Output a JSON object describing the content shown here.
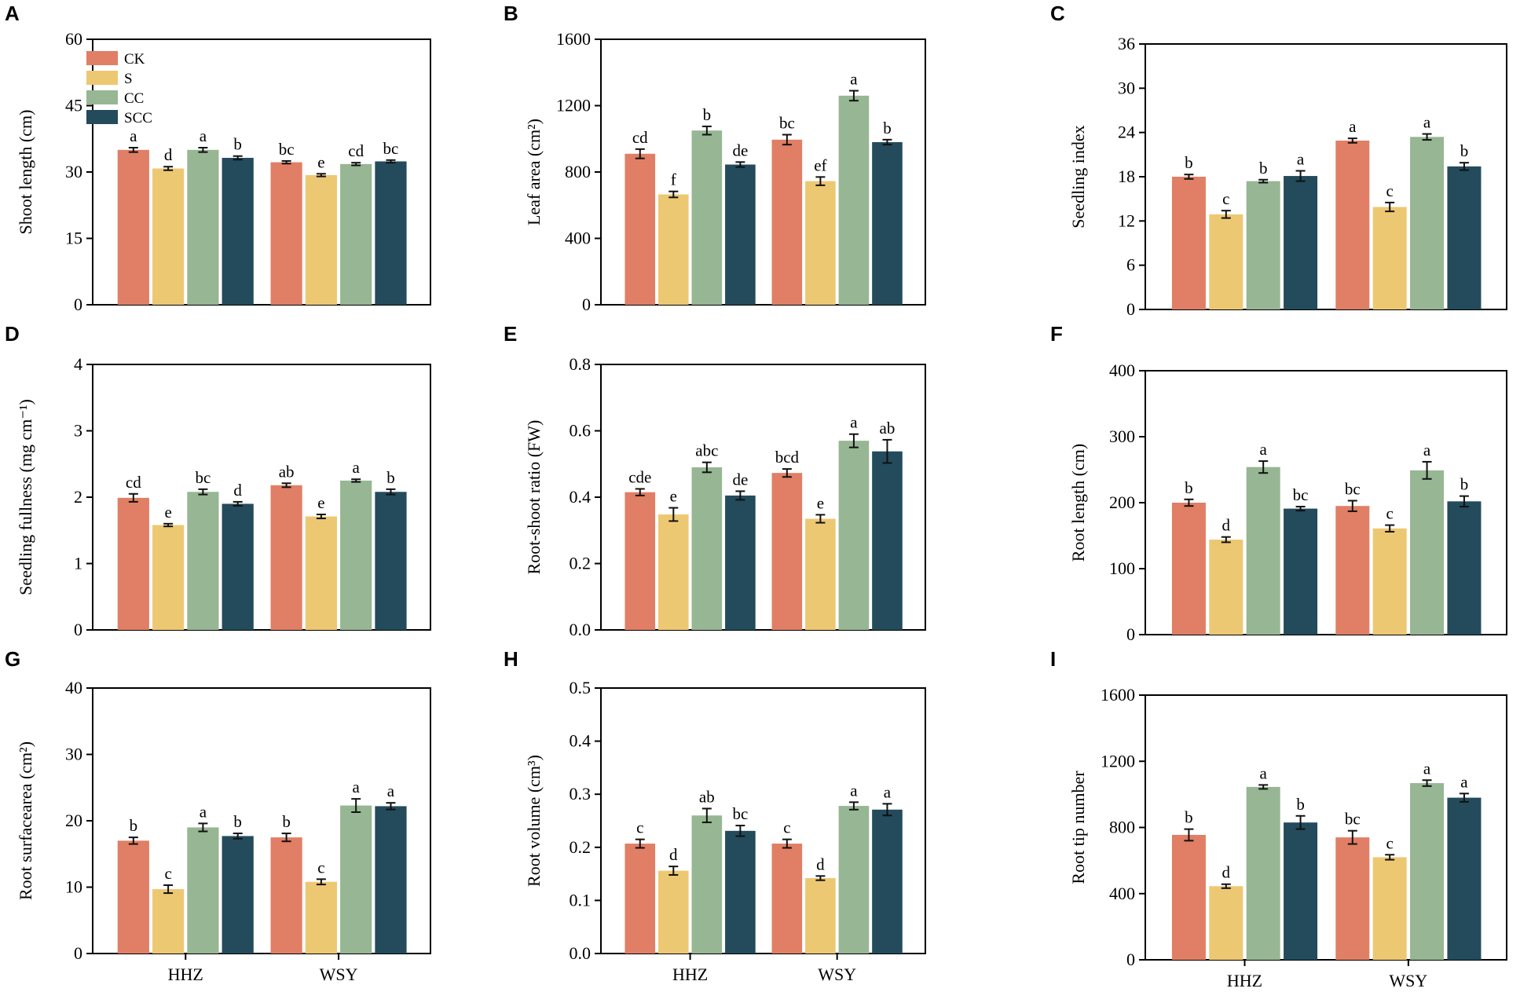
{
  "colors": {
    "CK": "#E07F65",
    "S": "#EDC873",
    "CC": "#97B694",
    "SCC": "#234B5C"
  },
  "legend": {
    "items": [
      "CK",
      "S",
      "CC",
      "SCC"
    ]
  },
  "chart_data": [
    {
      "type": "bar",
      "panel": "A",
      "ylabel": "Shoot length (cm)",
      "ylim": [
        0,
        60
      ],
      "yticks": [
        "0",
        "15",
        "30",
        "45",
        "60"
      ],
      "categories": [
        "HHZ",
        "WSY"
      ],
      "show_xlabels": false,
      "series": [
        {
          "name": "CK",
          "values": [
            35.0,
            32.2
          ],
          "errors": [
            0.5,
            0.3
          ],
          "letters": [
            "a",
            "bc"
          ]
        },
        {
          "name": "S",
          "values": [
            30.8,
            29.3
          ],
          "errors": [
            0.4,
            0.3
          ],
          "letters": [
            "d",
            "e"
          ]
        },
        {
          "name": "CC",
          "values": [
            35.0,
            31.8
          ],
          "errors": [
            0.5,
            0.3
          ],
          "letters": [
            "a",
            "cd"
          ]
        },
        {
          "name": "SCC",
          "values": [
            33.2,
            32.4
          ],
          "errors": [
            0.4,
            0.3
          ],
          "letters": [
            "b",
            "bc"
          ]
        }
      ]
    },
    {
      "type": "bar",
      "panel": "B",
      "ylabel": "Leaf area (cm²)",
      "ylim": [
        0,
        1600
      ],
      "yticks": [
        "0",
        "400",
        "800",
        "1200",
        "1600"
      ],
      "categories": [
        "HHZ",
        "WSY"
      ],
      "show_xlabels": false,
      "series": [
        {
          "name": "CK",
          "values": [
            910,
            995
          ],
          "errors": [
            28,
            30
          ],
          "letters": [
            "cd",
            "bc"
          ]
        },
        {
          "name": "S",
          "values": [
            665,
            745
          ],
          "errors": [
            18,
            25
          ],
          "letters": [
            "f",
            "ef"
          ]
        },
        {
          "name": "CC",
          "values": [
            1050,
            1260
          ],
          "errors": [
            25,
            30
          ],
          "letters": [
            "b",
            "a"
          ]
        },
        {
          "name": "SCC",
          "values": [
            845,
            980
          ],
          "errors": [
            15,
            15
          ],
          "letters": [
            "de",
            "b"
          ]
        }
      ]
    },
    {
      "type": "bar",
      "panel": "C",
      "ylabel": "Seedling index",
      "ylim": [
        0,
        36
      ],
      "yticks": [
        "0",
        "6",
        "12",
        "18",
        "24",
        "30",
        "36"
      ],
      "categories": [
        "HHZ",
        "WSY"
      ],
      "show_xlabels": false,
      "series": [
        {
          "name": "CK",
          "values": [
            18.0,
            22.9
          ],
          "errors": [
            0.3,
            0.3
          ],
          "letters": [
            "b",
            "a"
          ]
        },
        {
          "name": "S",
          "values": [
            12.9,
            13.9
          ],
          "errors": [
            0.5,
            0.6
          ],
          "letters": [
            "c",
            "c"
          ]
        },
        {
          "name": "CC",
          "values": [
            17.4,
            23.4
          ],
          "errors": [
            0.2,
            0.4
          ],
          "letters": [
            "b",
            "a"
          ]
        },
        {
          "name": "SCC",
          "values": [
            18.1,
            19.4
          ],
          "errors": [
            0.7,
            0.5
          ],
          "letters": [
            "a",
            "b"
          ]
        }
      ]
    },
    {
      "type": "bar",
      "panel": "D",
      "ylabel": "Seedling fullness (mg cm⁻¹)",
      "ylim": [
        0,
        4
      ],
      "yticks": [
        "0",
        "1",
        "2",
        "3",
        "4"
      ],
      "categories": [
        "HHZ",
        "WSY"
      ],
      "show_xlabels": false,
      "series": [
        {
          "name": "CK",
          "values": [
            1.99,
            2.18
          ],
          "errors": [
            0.06,
            0.03
          ],
          "letters": [
            "cd",
            "ab"
          ]
        },
        {
          "name": "S",
          "values": [
            1.58,
            1.71
          ],
          "errors": [
            0.02,
            0.03
          ],
          "letters": [
            "e",
            "e"
          ]
        },
        {
          "name": "CC",
          "values": [
            2.08,
            2.25
          ],
          "errors": [
            0.04,
            0.02
          ],
          "letters": [
            "bc",
            "a"
          ]
        },
        {
          "name": "SCC",
          "values": [
            1.9,
            2.08
          ],
          "errors": [
            0.03,
            0.04
          ],
          "letters": [
            "d",
            "b"
          ]
        }
      ]
    },
    {
      "type": "bar",
      "panel": "E",
      "ylabel": "Root-shoot ratio (FW)",
      "ylim": [
        0,
        0.8
      ],
      "yticks": [
        "0.0",
        "0.2",
        "0.4",
        "0.6",
        "0.8"
      ],
      "categories": [
        "HHZ",
        "WSY"
      ],
      "show_xlabels": false,
      "series": [
        {
          "name": "CK",
          "values": [
            0.415,
            0.473
          ],
          "errors": [
            0.01,
            0.012
          ],
          "letters": [
            "cde",
            "bcd"
          ]
        },
        {
          "name": "S",
          "values": [
            0.348,
            0.335
          ],
          "errors": [
            0.02,
            0.012
          ],
          "letters": [
            "e",
            "e"
          ]
        },
        {
          "name": "CC",
          "values": [
            0.49,
            0.57
          ],
          "errors": [
            0.015,
            0.02
          ],
          "letters": [
            "abc",
            "a"
          ]
        },
        {
          "name": "SCC",
          "values": [
            0.405,
            0.538
          ],
          "errors": [
            0.013,
            0.035
          ],
          "letters": [
            "de",
            "ab"
          ]
        }
      ]
    },
    {
      "type": "bar",
      "panel": "F",
      "ylabel": "Root length (cm)",
      "ylim": [
        0,
        400
      ],
      "yticks": [
        "0",
        "100",
        "200",
        "300",
        "400"
      ],
      "categories": [
        "HHZ",
        "WSY"
      ],
      "show_xlabels": false,
      "series": [
        {
          "name": "CK",
          "values": [
            200,
            195
          ],
          "errors": [
            5,
            8
          ],
          "letters": [
            "b",
            "bc"
          ]
        },
        {
          "name": "S",
          "values": [
            144,
            161
          ],
          "errors": [
            4,
            5
          ],
          "letters": [
            "d",
            "c"
          ]
        },
        {
          "name": "CC",
          "values": [
            254,
            249
          ],
          "errors": [
            9,
            13
          ],
          "letters": [
            "a",
            "a"
          ]
        },
        {
          "name": "SCC",
          "values": [
            191,
            202
          ],
          "errors": [
            3,
            8
          ],
          "letters": [
            "bc",
            "b"
          ]
        }
      ]
    },
    {
      "type": "bar",
      "panel": "G",
      "ylabel": "Root surfacearea (cm²)",
      "ylim": [
        0,
        40
      ],
      "yticks": [
        "0",
        "10",
        "20",
        "30",
        "40"
      ],
      "categories": [
        "HHZ",
        "WSY"
      ],
      "show_xlabels": true,
      "series": [
        {
          "name": "CK",
          "values": [
            17.0,
            17.5
          ],
          "errors": [
            0.5,
            0.6
          ],
          "letters": [
            "b",
            "b"
          ]
        },
        {
          "name": "S",
          "values": [
            9.7,
            10.8
          ],
          "errors": [
            0.6,
            0.4
          ],
          "letters": [
            "c",
            "c"
          ]
        },
        {
          "name": "CC",
          "values": [
            19.0,
            22.3
          ],
          "errors": [
            0.6,
            1.0
          ],
          "letters": [
            "a",
            "a"
          ]
        },
        {
          "name": "SCC",
          "values": [
            17.7,
            22.2
          ],
          "errors": [
            0.4,
            0.5
          ],
          "letters": [
            "b",
            "a"
          ]
        }
      ]
    },
    {
      "type": "bar",
      "panel": "H",
      "ylabel": "Root volume (cm³)",
      "ylim": [
        0,
        0.5
      ],
      "yticks": [
        "0.0",
        "0.1",
        "0.2",
        "0.3",
        "0.4",
        "0.5"
      ],
      "categories": [
        "HHZ",
        "WSY"
      ],
      "show_xlabels": true,
      "series": [
        {
          "name": "CK",
          "values": [
            0.207,
            0.207
          ],
          "errors": [
            0.008,
            0.008
          ],
          "letters": [
            "c",
            "c"
          ]
        },
        {
          "name": "S",
          "values": [
            0.156,
            0.142
          ],
          "errors": [
            0.008,
            0.004
          ],
          "letters": [
            "d",
            "d"
          ]
        },
        {
          "name": "CC",
          "values": [
            0.26,
            0.278
          ],
          "errors": [
            0.013,
            0.007
          ],
          "letters": [
            "ab",
            "a"
          ]
        },
        {
          "name": "SCC",
          "values": [
            0.231,
            0.271
          ],
          "errors": [
            0.01,
            0.011
          ],
          "letters": [
            "bc",
            "a"
          ]
        }
      ]
    },
    {
      "type": "bar",
      "panel": "I",
      "ylabel": "Root tip number",
      "ylim": [
        0,
        1600
      ],
      "yticks": [
        "0",
        "400",
        "800",
        "1200",
        "1600"
      ],
      "categories": [
        "HHZ",
        "WSY"
      ],
      "show_xlabels": true,
      "series": [
        {
          "name": "CK",
          "values": [
            755,
            740
          ],
          "errors": [
            35,
            40
          ],
          "letters": [
            "b",
            "bc"
          ]
        },
        {
          "name": "S",
          "values": [
            445,
            620
          ],
          "errors": [
            12,
            15
          ],
          "letters": [
            "d",
            "c"
          ]
        },
        {
          "name": "CC",
          "values": [
            1045,
            1068
          ],
          "errors": [
            12,
            18
          ],
          "letters": [
            "a",
            "a"
          ]
        },
        {
          "name": "SCC",
          "values": [
            830,
            980
          ],
          "errors": [
            40,
            25
          ],
          "letters": [
            "b",
            "a"
          ]
        }
      ]
    }
  ]
}
